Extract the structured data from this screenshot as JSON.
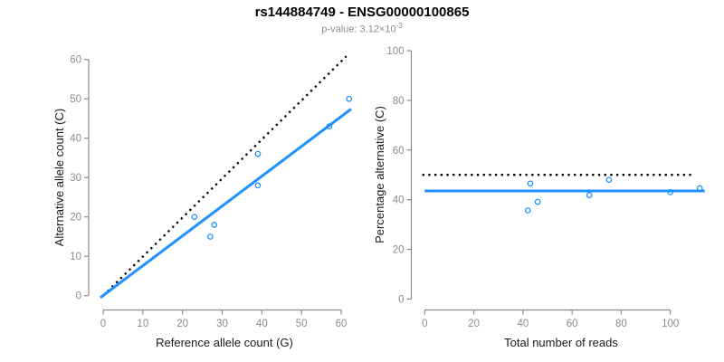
{
  "header": {
    "title": "rs144884749 - ENSG00000100865",
    "subtitle_prefix": "p-value: ",
    "subtitle_mantissa": "3.12×10",
    "subtitle_exponent": "-3"
  },
  "colors": {
    "accent_blue": "#1E90FF",
    "dotted_black": "#000000",
    "axis_gray": "#8c8c8c",
    "tick_label_gray": "#8c8c8c",
    "axis_title_black": "#1a1a1a",
    "subtitle_gray": "#8c8c8c",
    "background": "#ffffff"
  },
  "chart_data": [
    {
      "type": "scatter",
      "name": "allele-counts",
      "xlabel": "Reference allele count (G)",
      "ylabel": "Alternative allele count (C)",
      "xticks": [
        0,
        10,
        20,
        30,
        40,
        50,
        60
      ],
      "yticks": [
        0,
        10,
        20,
        30,
        40,
        50,
        60
      ],
      "xlim": [
        0,
        62.5
      ],
      "ylim": [
        0,
        62
      ],
      "grid": false,
      "legend": null,
      "points": [
        [
          23,
          20
        ],
        [
          27,
          15
        ],
        [
          28,
          18
        ],
        [
          39,
          28
        ],
        [
          39,
          36
        ],
        [
          57,
          43
        ],
        [
          62,
          50
        ]
      ],
      "lines": [
        {
          "name": "identity-line",
          "style": "dotted",
          "color": "#000000",
          "width": 2.3,
          "x1": 0,
          "y1": 0,
          "x2": 61.3,
          "y2": 60.8
        },
        {
          "name": "regression-line",
          "style": "solid",
          "color": "#1E90FF",
          "width": 3,
          "x1": -0.7,
          "y1": -0.5,
          "x2": 62.5,
          "y2": 47.4
        }
      ]
    },
    {
      "type": "scatter",
      "name": "percentage-vs-reads",
      "xlabel": "Total number of reads",
      "ylabel": "Percentage alternative (C)",
      "xticks": [
        0,
        20,
        40,
        60,
        80,
        100
      ],
      "yticks": [
        0,
        20,
        40,
        60,
        80,
        100
      ],
      "xlim": [
        0,
        116
      ],
      "ylim": [
        0,
        100
      ],
      "grid": false,
      "legend": null,
      "points": [
        [
          42,
          35.7
        ],
        [
          43,
          46.5
        ],
        [
          46,
          39.1
        ],
        [
          67,
          41.8
        ],
        [
          75,
          48
        ],
        [
          100,
          43
        ],
        [
          112,
          44.6
        ]
      ],
      "lines": [
        {
          "name": "fifty-percent-line",
          "style": "dotted",
          "color": "#000000",
          "width": 2.3,
          "x1": -1,
          "y1": 50,
          "x2": 109.6,
          "y2": 50
        },
        {
          "name": "regression-line",
          "style": "solid",
          "color": "#1E90FF",
          "width": 3,
          "x1": 0,
          "y1": 43.5,
          "x2": 114,
          "y2": 43.5
        }
      ]
    }
  ]
}
